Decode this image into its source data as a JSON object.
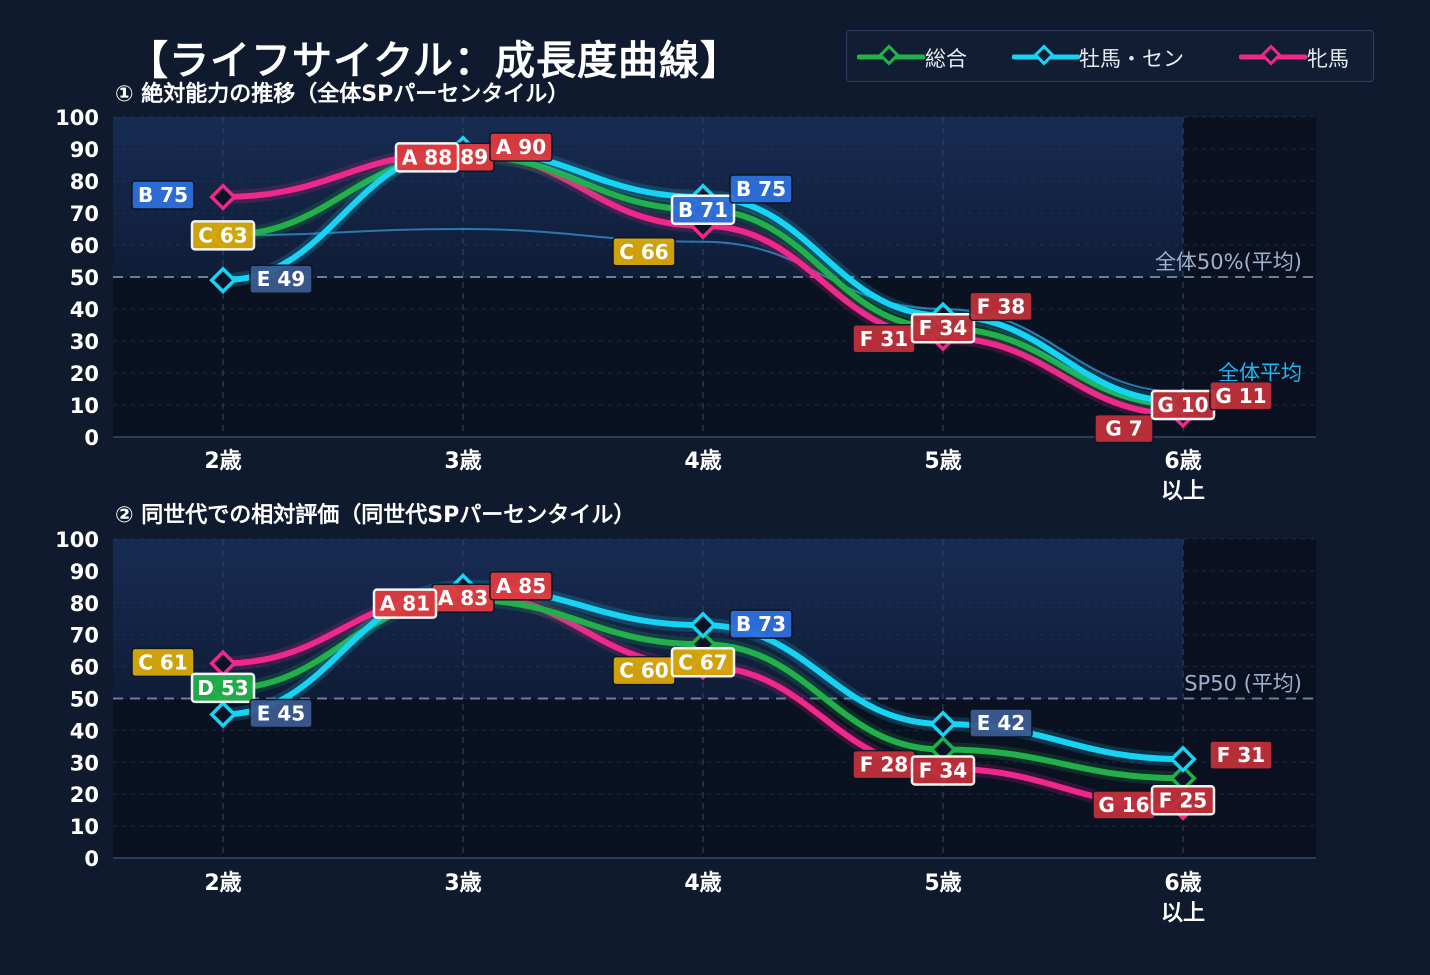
{
  "title": "【ライフサイクル：成長度曲線】",
  "legend": [
    {
      "label": "総合",
      "color": "#22b04b"
    },
    {
      "label": "牡馬・セン",
      "color": "#17d4f5"
    },
    {
      "label": "牝馬",
      "color": "#f0288c"
    }
  ],
  "colors": {
    "background": "#0f1a2e",
    "plot_bg": "#0a1121",
    "highlight_bg": "#14264a",
    "grade_A": "#e03a3e",
    "grade_B": "#2f6fdc",
    "grade_C": "#d9a90a",
    "grade_D": "#22b04b",
    "grade_E": "#3b5a8f",
    "grade_F": "#c0303a",
    "grade_G": "#c0303a"
  },
  "chart_data": [
    {
      "type": "line",
      "title": "① 絶対能力の推移（全体SPパーセンタイル）",
      "categories": [
        "2歳",
        "3歳",
        "4歳",
        "5歳",
        "6歳\n以上"
      ],
      "ylim": [
        0,
        100
      ],
      "yticks": [
        0,
        10,
        20,
        30,
        40,
        50,
        60,
        70,
        80,
        90,
        100
      ],
      "grid": true,
      "legend_position": "top-right",
      "reference_line": {
        "value": 50,
        "label": "全体50%(平均)"
      },
      "average_curve": {
        "label": "全体平均",
        "values": [
          63,
          65,
          61,
          40,
          14
        ]
      },
      "series": [
        {
          "name": "総合",
          "values": [
            63,
            88,
            71,
            34,
            10
          ],
          "labels": [
            "C 63",
            "A 88",
            "B 71",
            "F 34",
            "G 10"
          ]
        },
        {
          "name": "牡馬・セン",
          "values": [
            49,
            90,
            75,
            38,
            11
          ],
          "labels": [
            "E 49",
            "A 90",
            "B 75",
            "F 38",
            "G 11"
          ]
        },
        {
          "name": "牝馬",
          "values": [
            75,
            89,
            66,
            31,
            7
          ],
          "labels": [
            "B 75",
            "A 89",
            "C 66",
            "F 31",
            "G 7"
          ]
        }
      ]
    },
    {
      "type": "line",
      "title": "② 同世代での相対評価（同世代SPパーセンタイル）",
      "categories": [
        "2歳",
        "3歳",
        "4歳",
        "5歳",
        "6歳\n以上"
      ],
      "ylim": [
        0,
        100
      ],
      "yticks": [
        0,
        10,
        20,
        30,
        40,
        50,
        60,
        70,
        80,
        90,
        100
      ],
      "grid": true,
      "reference_line": {
        "value": 50,
        "label": "SP50 (平均)"
      },
      "series": [
        {
          "name": "総合",
          "values": [
            53,
            81,
            67,
            34,
            25
          ],
          "labels": [
            "D 53",
            "A 81",
            "C 67",
            "F 34",
            "F 25"
          ]
        },
        {
          "name": "牡馬・セン",
          "values": [
            45,
            85,
            73,
            42,
            31
          ],
          "labels": [
            "E 45",
            "A 85",
            "B 73",
            "E 42",
            "F 31"
          ]
        },
        {
          "name": "牝馬",
          "values": [
            61,
            83,
            60,
            28,
            16
          ],
          "labels": [
            "C 61",
            "A 83",
            "C 60",
            "F 28",
            "G 16"
          ]
        }
      ]
    }
  ]
}
